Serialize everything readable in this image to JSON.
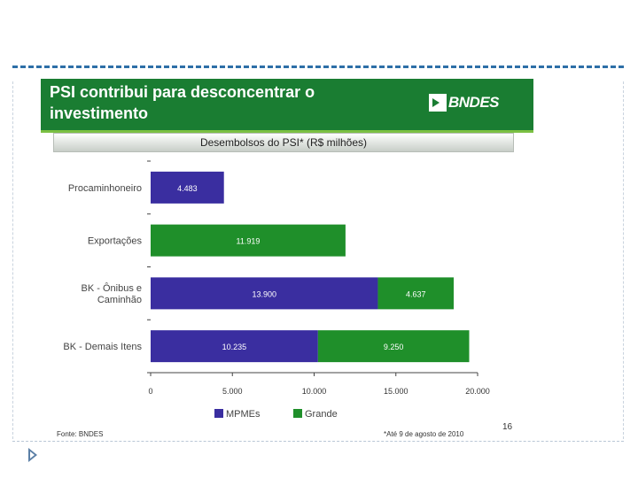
{
  "slide": {
    "title": "PSI contribui para desconcentrar o investimento",
    "logo_text": "BNDES",
    "chart_title": "Desembolsos do PSI* (R$ milhões)",
    "source": "Fonte: BNDES",
    "note": "*Até 9 de agosto de 2010",
    "page_number": "16"
  },
  "colors": {
    "mpme": "#3a2ea0",
    "grande": "#1f8f2a",
    "header": "#1a7d32"
  },
  "chart_data": {
    "type": "bar",
    "orientation": "horizontal",
    "stacked": true,
    "title": "Desembolsos do PSI* (R$ milhões)",
    "categories": [
      "Procaminhoneiro",
      "Exportações",
      "BK - Ônibus e Caminhão",
      "BK - Demais Itens"
    ],
    "category_lines": [
      [
        "Procaminhoneiro"
      ],
      [
        "Exportações"
      ],
      [
        "BK - Ônibus e",
        "Caminhão"
      ],
      [
        "BK - Demais Itens"
      ]
    ],
    "series": [
      {
        "name": "MPMEs",
        "color": "#3a2ea0",
        "values": [
          4483,
          0,
          13900,
          10235
        ],
        "labels": [
          "4.483",
          "",
          "13.900",
          "10.235"
        ]
      },
      {
        "name": "Grande",
        "color": "#1f8f2a",
        "values": [
          0,
          11919,
          4637,
          9250
        ],
        "labels": [
          "",
          "11.919",
          "4.637",
          "9.250"
        ]
      }
    ],
    "xlim": [
      0,
      20000
    ],
    "xticks": [
      0,
      5000,
      10000,
      15000,
      20000
    ],
    "xtick_labels": [
      "0",
      "5.000",
      "10.000",
      "15.000",
      "20.000"
    ],
    "legend": [
      "MPMEs",
      "Grande"
    ],
    "legend_position": "bottom",
    "grid": false
  }
}
